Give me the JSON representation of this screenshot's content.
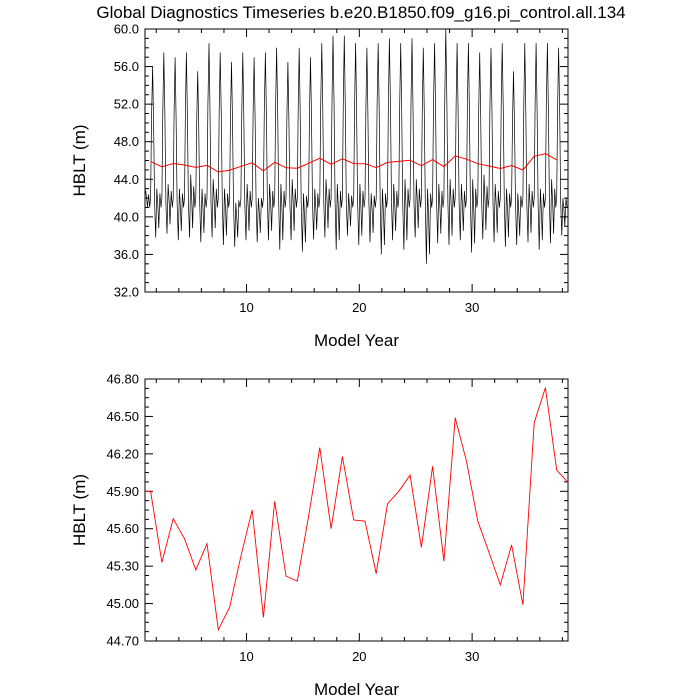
{
  "title": "Global Diagnostics Timeseries b.e20.B1850.f09_g16.pi_control.all.134",
  "colors": {
    "monthly": "#000000",
    "annual": "#ff0000",
    "axis": "#000000"
  },
  "chart_data": [
    {
      "type": "line",
      "xlabel": "Model Year",
      "ylabel": "HBLT (m)",
      "xlim": [
        1,
        38.5
      ],
      "ylim": [
        32,
        60
      ],
      "x_ticks": [
        10,
        20,
        30
      ],
      "y_ticks": [
        "32.0",
        "36.0",
        "40.0",
        "44.0",
        "48.0",
        "52.0",
        "56.0",
        "60.0"
      ],
      "series": [
        {
          "kind": "monthly",
          "color": "#000000",
          "cycle_years": 1,
          "annual_max": [
            57.5,
            56.0,
            57.5,
            57.0,
            57.5,
            55.5,
            58.5,
            57.5,
            56.5,
            57.5,
            57.0,
            57.5,
            58.0,
            56.5,
            58.0,
            57.0,
            58.5,
            59.3,
            59.3,
            58.5,
            58.0,
            58.5,
            59.0,
            58.5,
            59.0,
            58.0,
            58.5,
            60.0,
            58.5,
            58.5,
            57.5,
            58.0,
            58.5,
            55.5,
            58.5,
            58.5,
            58.5,
            58.0
          ],
          "annual_min": [
            40.0,
            37.8,
            38.2,
            37.5,
            37.8,
            37.3,
            37.8,
            37.0,
            36.8,
            37.5,
            37.3,
            37.5,
            36.5,
            37.5,
            36.3,
            37.6,
            37.8,
            36.5,
            38.0,
            37.0,
            37.3,
            36.0,
            37.5,
            36.5,
            37.8,
            35.0,
            37.2,
            37.0,
            37.5,
            36.2,
            37.6,
            37.3,
            36.8,
            37.0,
            37.3,
            36.5,
            37.2,
            38.0
          ],
          "secondary_peak": [
            42.8,
            43.0,
            43.5,
            43.0,
            44.5,
            43.0,
            44.0,
            43.0,
            41.5,
            43.5,
            42.0,
            43.5,
            43.5,
            44.0,
            42.5,
            43.0,
            44.0,
            43.5,
            42.5,
            43.5,
            42.5,
            43.0,
            43.5,
            44.0,
            44.0,
            43.0,
            43.5,
            44.0,
            43.5,
            44.0,
            44.5,
            43.5,
            43.0,
            42.5,
            43.5,
            43.0,
            44.0,
            42.0
          ]
        }
      ],
      "overlay_annual": true
    },
    {
      "type": "line",
      "xlabel": "Model Year",
      "ylabel": "HBLT (m)",
      "xlim": [
        1,
        38.5
      ],
      "ylim": [
        44.7,
        46.8
      ],
      "x_ticks": [
        10,
        20,
        30
      ],
      "y_ticks": [
        "44.70",
        "45.00",
        "45.30",
        "45.60",
        "45.90",
        "46.20",
        "46.50",
        "46.80"
      ],
      "series": [
        {
          "kind": "annual",
          "color": "#ff0000",
          "x": [
            1.5,
            2.5,
            3.5,
            4.5,
            5.5,
            6.5,
            7.5,
            8.5,
            9.5,
            10.5,
            11.5,
            12.5,
            13.5,
            14.5,
            15.5,
            16.5,
            17.5,
            18.5,
            19.5,
            20.5,
            21.5,
            22.5,
            23.5,
            24.5,
            25.5,
            26.5,
            27.5,
            28.5,
            29.5,
            30.5,
            31.5,
            32.5,
            33.5,
            34.5,
            35.5,
            36.5,
            37.5
          ],
          "values": [
            45.9,
            45.33,
            45.68,
            45.52,
            45.27,
            45.48,
            44.79,
            44.97,
            45.38,
            45.75,
            44.89,
            45.82,
            45.22,
            45.18,
            45.7,
            46.25,
            45.6,
            46.18,
            45.67,
            45.66,
            45.24,
            45.8,
            45.9,
            46.03,
            45.45,
            46.1,
            45.34,
            46.49,
            46.14,
            45.66,
            45.41,
            45.15,
            45.47,
            44.99,
            46.45,
            46.73,
            46.07
          ]
        }
      ]
    }
  ]
}
